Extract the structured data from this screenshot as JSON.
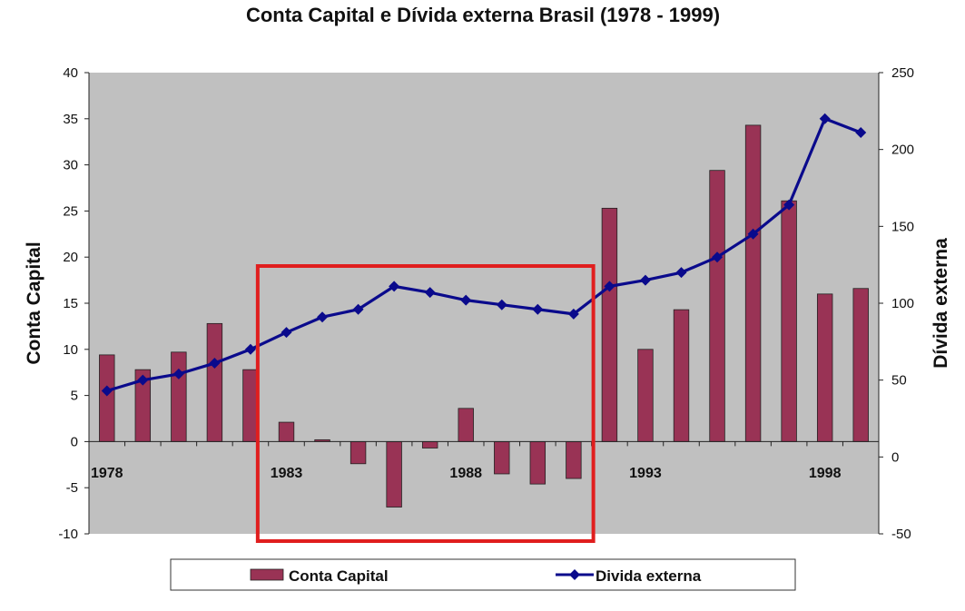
{
  "chart_data": {
    "type": "bar",
    "title": "Conta Capital e Dívida externa Brasil (1978 - 1999)",
    "ylabel": "Conta Capital",
    "y2label": "Dívida externa",
    "ylim": [
      -10,
      40
    ],
    "y2lim": [
      -50,
      250
    ],
    "yticks": [
      -10,
      -5,
      0,
      5,
      10,
      15,
      20,
      25,
      30,
      35,
      40
    ],
    "y2ticks": [
      -50,
      0,
      50,
      100,
      150,
      200,
      250
    ],
    "y2tick_labels": [
      "-50",
      "0",
      "50",
      "100",
      "150",
      "200",
      "250"
    ],
    "categories": [
      1978,
      1979,
      1980,
      1981,
      1982,
      1983,
      1984,
      1985,
      1986,
      1987,
      1988,
      1989,
      1990,
      1991,
      1992,
      1993,
      1994,
      1995,
      1996,
      1997,
      1998,
      1999
    ],
    "x_tick_labels": [
      {
        "year": 1978,
        "label": "1978"
      },
      {
        "year": 1983,
        "label": "1983"
      },
      {
        "year": 1988,
        "label": "1988"
      },
      {
        "year": 1993,
        "label": "1993"
      },
      {
        "year": 1998,
        "label": "1998"
      }
    ],
    "series": [
      {
        "name": "Conta Capital",
        "kind": "bar",
        "axis": "left",
        "color": "#993355",
        "values": [
          9.4,
          7.8,
          9.7,
          12.8,
          7.8,
          2.1,
          0.2,
          -2.4,
          -7.1,
          -0.7,
          3.6,
          -3.5,
          -4.6,
          -4.0,
          25.3,
          10.0,
          14.3,
          29.4,
          34.3,
          26.1,
          16.0,
          16.6
        ]
      },
      {
        "name": "Divida externa",
        "kind": "line",
        "axis": "right",
        "color": "#0a0a8c",
        "values": [
          43,
          50,
          54,
          61,
          70,
          81,
          91,
          96,
          111,
          107,
          102,
          99,
          96,
          93,
          111,
          115,
          120,
          130,
          145,
          164,
          220,
          211
        ]
      }
    ],
    "legend": {
      "position": "bottom",
      "items": [
        "Conta Capital",
        "Divida externa"
      ]
    },
    "grid": false,
    "plot_background": "#c0c0c0",
    "highlight_box": {
      "color": "#e01e1e",
      "from_year": 1983,
      "to_year": 1991
    }
  }
}
